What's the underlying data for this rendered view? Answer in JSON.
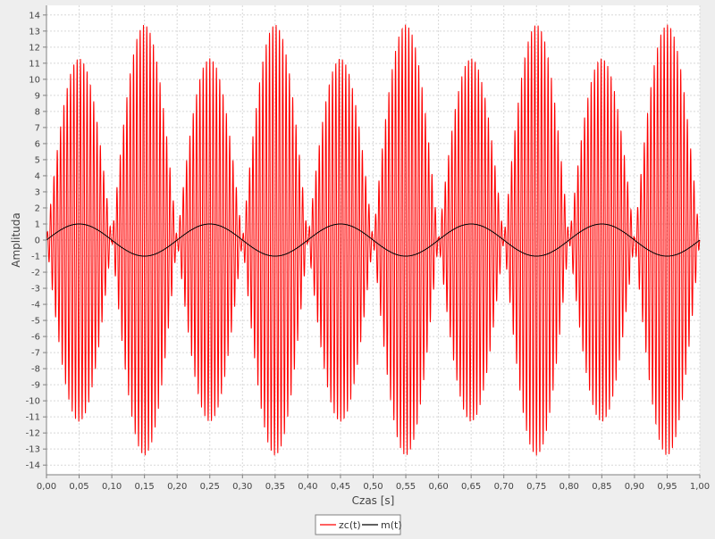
{
  "chart_data": {
    "type": "line",
    "title": "",
    "xlabel": "Czas [s]",
    "ylabel": "Amplituda",
    "xlim": [
      0.0,
      1.0
    ],
    "ylim": [
      -14.6,
      14.6
    ],
    "grid": true,
    "legend_position": "bottom-center",
    "x_ticks": [
      "0,00",
      "0,05",
      "0,10",
      "0,15",
      "0,20",
      "0,25",
      "0,30",
      "0,35",
      "0,40",
      "0,45",
      "0,50",
      "0,55",
      "0,60",
      "0,65",
      "0,70",
      "0,75",
      "0,80",
      "0,85",
      "0,90",
      "0,95",
      "1,00"
    ],
    "y_ticks": [
      "14",
      "13",
      "12",
      "11",
      "10",
      "9",
      "8",
      "7",
      "6",
      "5",
      "4",
      "3",
      "2",
      "1",
      "0",
      "-1",
      "-2",
      "-3",
      "-4",
      "-5",
      "-6",
      "-7",
      "-8",
      "-9",
      "-10",
      "-11",
      "-12",
      "-13",
      "-14"
    ],
    "series": [
      {
        "name": "zc(t)",
        "color": "#ff0000",
        "description_values": {
          "carrier_peak_envelope_maxima": [
            11.3,
            13.4,
            11.3,
            13.4,
            11.3,
            13.4,
            11.3,
            13.4,
            11.3,
            13.4
          ],
          "envelope_maxima_x": [
            0.05,
            0.15,
            0.25,
            0.35,
            0.45,
            0.55,
            0.65,
            0.75,
            0.85,
            0.95
          ],
          "envelope_nulls_x": [
            0.0,
            0.1,
            0.2,
            0.3,
            0.4,
            0.5,
            0.6,
            0.7,
            0.8,
            0.9,
            1.0
          ]
        }
      },
      {
        "name": "m(t)",
        "color": "#000000",
        "amplitude": 1.0,
        "frequency_hz": 5,
        "peaks_x": [
          0.05,
          0.25,
          0.45,
          0.65,
          0.85
        ],
        "troughs_x": [
          0.15,
          0.35,
          0.55,
          0.75,
          0.95
        ]
      }
    ]
  },
  "legend": {
    "items": [
      {
        "label": "zc(t)",
        "color": "#ff0000"
      },
      {
        "label": "m(t)",
        "color": "#000000"
      }
    ]
  }
}
